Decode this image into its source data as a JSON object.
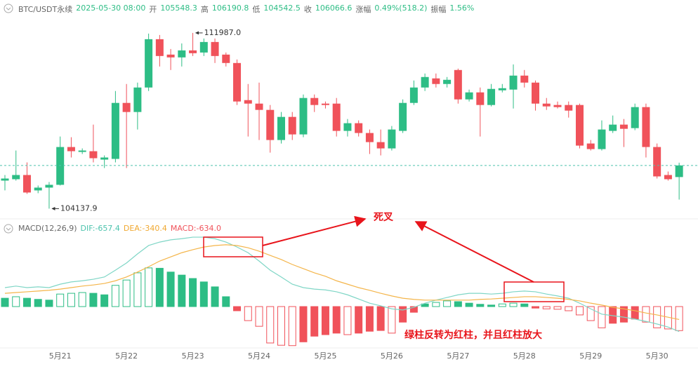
{
  "header": {
    "symbol": "BTC/USDT永续",
    "time": "2025-05-30 08:00",
    "open_label": "开",
    "open": "105548.3",
    "high_label": "高",
    "high": "106190.8",
    "low_label": "低",
    "low": "104542.5",
    "close_label": "收",
    "close": "106066.6",
    "change_label": "涨幅",
    "change": "0.49%(518.2)",
    "amplitude_label": "振幅",
    "amplitude": "1.56%"
  },
  "chart_data": [
    {
      "type": "candlestick",
      "up_color": "#2dbd85",
      "down_color": "#f0525a",
      "ylim": [
        103900,
        112830
      ],
      "categories": [
        null,
        null,
        null,
        null,
        null,
        "5月21",
        null,
        null,
        null,
        null,
        null,
        "5月22",
        null,
        null,
        null,
        null,
        null,
        "5月23",
        null,
        null,
        null,
        null,
        null,
        "5月24",
        null,
        null,
        null,
        null,
        null,
        "5月25",
        null,
        null,
        null,
        null,
        null,
        "5月26",
        null,
        null,
        null,
        null,
        null,
        "5月27",
        null,
        null,
        null,
        null,
        null,
        "5月28",
        null,
        null,
        null,
        null,
        null,
        "5月29",
        null,
        null,
        null,
        null,
        null,
        "5月30",
        null,
        null
      ],
      "open": [
        105390,
        105452,
        105640,
        104952,
        105077,
        105202,
        106890,
        106671,
        106703,
        106328,
        106359,
        108860,
        108454,
        109548,
        111706,
        111018,
        110893,
        111206,
        111111,
        111581,
        111018,
        110643,
        108985,
        108829,
        108548,
        107203,
        108235,
        107453,
        109080,
        108829,
        108829,
        107610,
        107954,
        107516,
        107109,
        106828,
        107610,
        108860,
        109548,
        109955,
        109705,
        110330,
        109017,
        109330,
        108767,
        109423,
        109455,
        110080,
        109767,
        108829,
        108767,
        108767,
        108767,
        107047,
        106797,
        107610,
        107891,
        107734,
        108673,
        106890,
        105640,
        105548.3
      ],
      "high": [
        105640,
        106734,
        106203,
        105171,
        105327,
        107359,
        107328,
        106828,
        107891,
        106515,
        109392,
        109705,
        109767,
        111956,
        111894,
        111268,
        111518,
        111987.0,
        111737,
        111737,
        111111,
        110799,
        109705,
        109767,
        108767,
        108454,
        108454,
        109236,
        109236,
        108923,
        109080,
        108141,
        108079,
        107672,
        107672,
        107829,
        109017,
        109861,
        110173,
        110173,
        110017,
        110392,
        109455,
        109548,
        109705,
        109705,
        110580,
        110330,
        109861,
        109080,
        108923,
        108923,
        108829,
        107203,
        108079,
        108297,
        108141,
        108829,
        108829,
        107047,
        105796,
        106190.8
      ],
      "low": [
        104952,
        105390,
        104796,
        104827,
        104137.9,
        105171,
        106422,
        106578,
        106203,
        105952,
        106203,
        105952,
        107672,
        109392,
        110486,
        110330,
        110486,
        110955,
        110955,
        110643,
        110486,
        108767,
        107359,
        107203,
        106640,
        107047,
        107203,
        107328,
        108454,
        108610,
        107359,
        107359,
        107359,
        106578,
        106515,
        106734,
        107516,
        108767,
        109392,
        109548,
        109548,
        108829,
        108923,
        107359,
        108704,
        109330,
        108610,
        109548,
        108516,
        108548,
        108610,
        108204,
        106828,
        106734,
        106734,
        107516,
        106890,
        107641,
        106422,
        105483,
        105390,
        104542.5
      ],
      "close": [
        105483,
        105640,
        104858,
        105077,
        105202,
        106890,
        106703,
        106734,
        106390,
        106422,
        108860,
        108454,
        109548,
        111706,
        110955,
        110893,
        111206,
        111080,
        111581,
        110955,
        110643,
        108923,
        108829,
        108548,
        107203,
        108235,
        107453,
        109080,
        108767,
        108767,
        107610,
        107954,
        107516,
        107109,
        106828,
        107672,
        108860,
        109548,
        110017,
        109705,
        109892,
        109017,
        109330,
        108767,
        109486,
        109517,
        110080,
        109767,
        108829,
        108704,
        108673,
        108516,
        106953,
        106797,
        107672,
        107891,
        107703,
        108673,
        106890,
        105577,
        105452,
        106066.6
      ],
      "max_label": "111987.0",
      "min_label": "104137.9"
    },
    {
      "type": "macd",
      "title": "MACD(12,26,9)",
      "dif_label": "DIF:-657.4",
      "dea_label": "DEA:-340.4",
      "macd_label": "MACD:-634.0",
      "dif_color": "#7fd6c6",
      "dea_color": "#f4b54a",
      "up_color": "#2dbd85",
      "down_color": "#f0525a",
      "ylim": [
        -1165,
        1887
      ],
      "macd": [
        220,
        260,
        220,
        190,
        170,
        330,
        350,
        370,
        350,
        310,
        560,
        700,
        890,
        1020,
        1010,
        910,
        830,
        740,
        650,
        520,
        260,
        -110,
        -370,
        -520,
        -960,
        -1020,
        -1030,
        -930,
        -780,
        -740,
        -700,
        -740,
        -700,
        -650,
        -630,
        -700,
        -410,
        -150,
        70,
        110,
        150,
        130,
        90,
        60,
        40,
        70,
        90,
        70,
        -40,
        -60,
        -70,
        -110,
        -220,
        -370,
        -560,
        -440,
        -410,
        -330,
        -410,
        -560,
        -590,
        -634.0
      ],
      "dif": [
        500,
        540,
        500,
        520,
        500,
        590,
        650,
        680,
        720,
        780,
        960,
        1150,
        1390,
        1610,
        1700,
        1760,
        1790,
        1830,
        1830,
        1790,
        1700,
        1570,
        1420,
        1200,
        960,
        780,
        590,
        500,
        460,
        440,
        390,
        310,
        200,
        90,
        20,
        -60,
        -90,
        -20,
        90,
        170,
        240,
        310,
        350,
        350,
        330,
        350,
        390,
        410,
        390,
        330,
        280,
        220,
        90,
        -60,
        -200,
        -240,
        -280,
        -330,
        -390,
        -460,
        -540,
        -657.4
      ],
      "dea": [
        350,
        370,
        390,
        410,
        430,
        460,
        500,
        540,
        570,
        610,
        680,
        780,
        910,
        1050,
        1200,
        1310,
        1420,
        1500,
        1570,
        1610,
        1630,
        1610,
        1550,
        1460,
        1350,
        1240,
        1110,
        1000,
        890,
        800,
        680,
        590,
        500,
        430,
        350,
        280,
        220,
        190,
        170,
        170,
        170,
        170,
        170,
        190,
        200,
        220,
        240,
        260,
        260,
        240,
        220,
        190,
        150,
        90,
        40,
        -20,
        -60,
        -110,
        -170,
        -220,
        -280,
        -340.4
      ]
    }
  ],
  "annotations": {
    "death_cross": "死叉",
    "reversal": "绿柱反转为红柱，并且红柱放大"
  }
}
